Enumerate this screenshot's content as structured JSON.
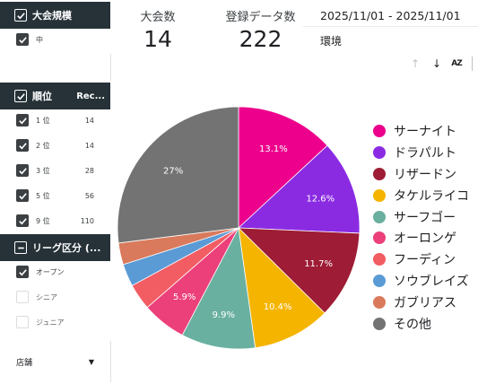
{
  "filters": {
    "size": {
      "title": "大会規模",
      "items": [
        {
          "label": "中",
          "checked": true
        }
      ]
    },
    "rank": {
      "title": "順位",
      "column": "Rec...",
      "items": [
        {
          "label": "1 位",
          "count": "14",
          "checked": true
        },
        {
          "label": "2 位",
          "count": "14",
          "checked": true
        },
        {
          "label": "3 位",
          "count": "28",
          "checked": true
        },
        {
          "label": "5 位",
          "count": "56",
          "checked": true
        },
        {
          "label": "9 位",
          "count": "110",
          "checked": true
        }
      ]
    },
    "league": {
      "title": "リーグ区分 (...",
      "items": [
        {
          "label": "オープン",
          "checked": true
        },
        {
          "label": "シニア",
          "checked": false
        },
        {
          "label": "ジュニア",
          "checked": false
        }
      ]
    },
    "store": {
      "label": "店舗",
      "icon": "caret-down-icon"
    }
  },
  "kpis": [
    {
      "label": "大会数",
      "value": "14"
    },
    {
      "label": "登録データ数",
      "value": "222"
    }
  ],
  "date_range": "2025/11/01 - 2025/11/01",
  "environment": "環境",
  "toolbar": {
    "sort_asc": "↑",
    "sort_desc": "↓",
    "sort_az": "AZ"
  },
  "colors": {
    "header_bg": "#263238",
    "checkbox_on": "#3c4043"
  },
  "chart_data": {
    "type": "pie",
    "slices": [
      {
        "name": "サーナイト",
        "value": 13.1,
        "label": "13.1%",
        "color": "#ec008c"
      },
      {
        "name": "ドラパルト",
        "value": 12.6,
        "label": "12.6%",
        "color": "#8a2be2"
      },
      {
        "name": "リザードン",
        "value": 11.7,
        "label": "11.7%",
        "color": "#9e1c35"
      },
      {
        "name": "タケルライコ",
        "value": 10.4,
        "label": "10.4%",
        "color": "#f5b400"
      },
      {
        "name": "サーフゴー",
        "value": 9.9,
        "label": "9.9%",
        "color": "#6ab0a0"
      },
      {
        "name": "オーロンゲ",
        "value": 5.9,
        "label": "5.9%",
        "color": "#ec407a"
      },
      {
        "name": "フーディン",
        "value": 3.5,
        "label": "",
        "color": "#f25c63"
      },
      {
        "name": "ソウブレイズ",
        "value": 3.0,
        "label": "",
        "color": "#5b9bd5"
      },
      {
        "name": "ガブリアス",
        "value": 2.9,
        "label": "",
        "color": "#d97a5c"
      },
      {
        "name": "その他",
        "value": 27.0,
        "label": "27%",
        "color": "#737373"
      }
    ],
    "legend_position": "right"
  }
}
